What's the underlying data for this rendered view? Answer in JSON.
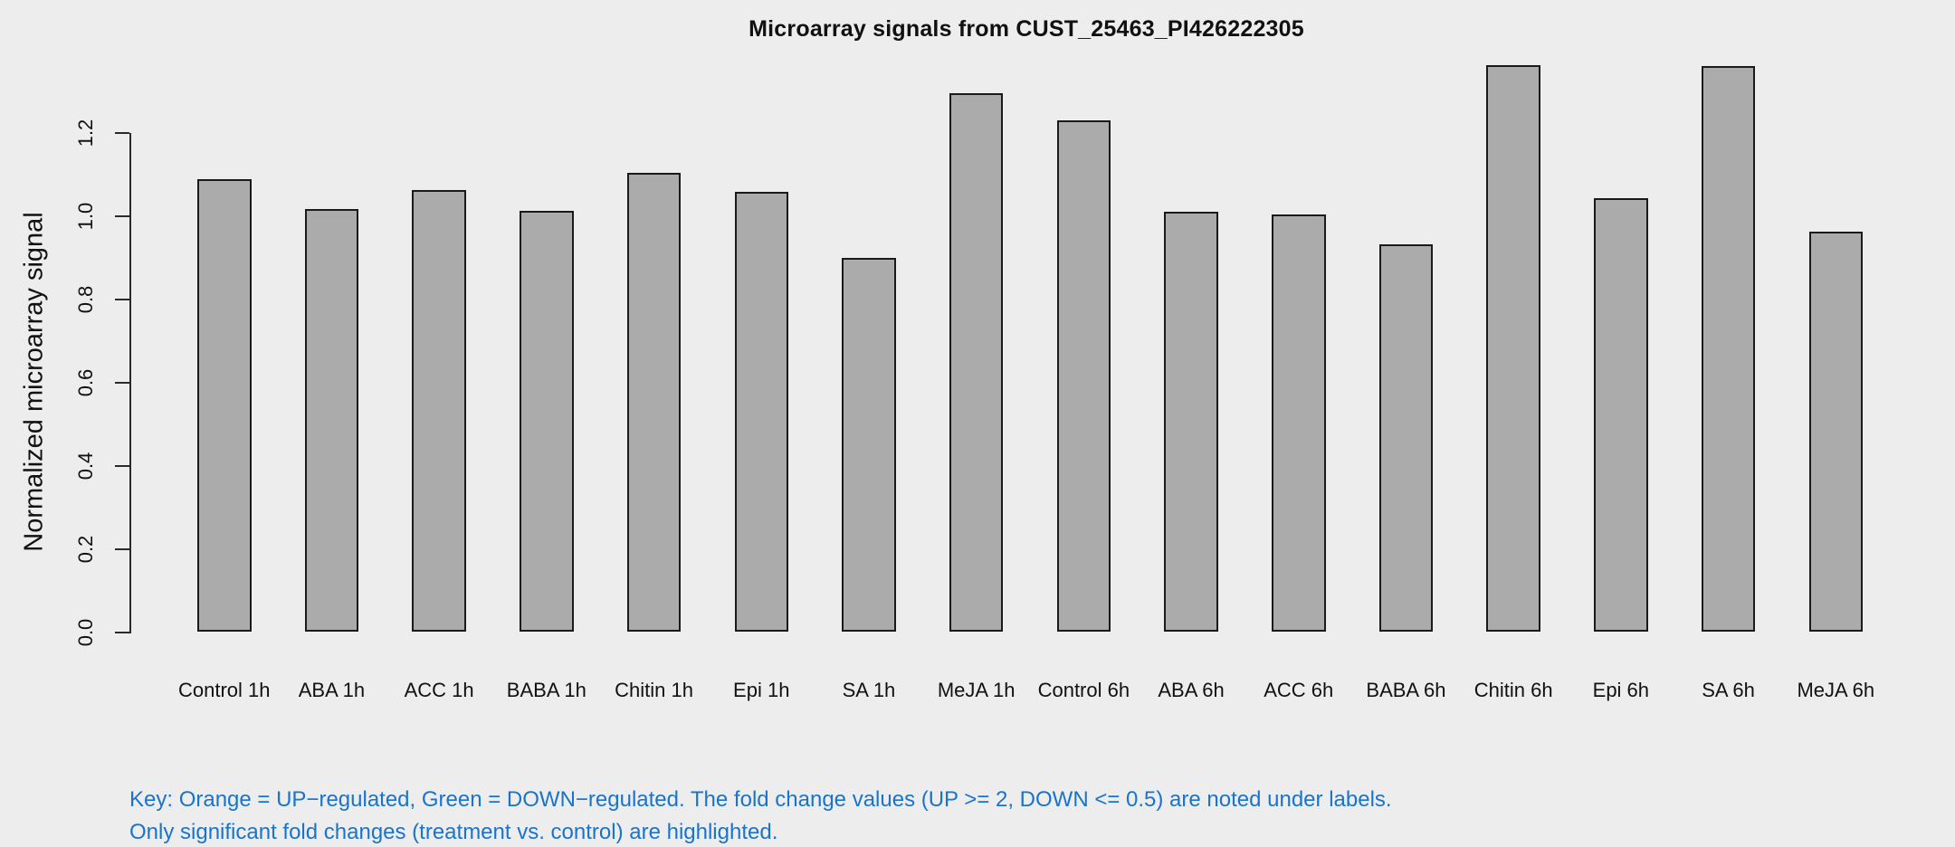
{
  "title": "Microarray signals from CUST_25463_PI426222305",
  "key": {
    "line1": "Key: Orange = UP−regulated, Green = DOWN−regulated. The fold change values (UP >= 2, DOWN <= 0.5) are noted under labels.",
    "line2": "Only significant fold changes (treatment vs. control) are highlighted.",
    "color": "#1874CD"
  },
  "chart_data": {
    "type": "bar",
    "title": "Microarray signals from CUST_25463_PI426222305",
    "xlabel": "",
    "ylabel": "Normalized microarray signal",
    "categories": [
      "Control 1h",
      "ABA 1h",
      "ACC 1h",
      "BABA 1h",
      "Chitin 1h",
      "Epi 1h",
      "SA 1h",
      "MeJA 1h",
      "Control 6h",
      "ABA 6h",
      "ACC 6h",
      "BABA 6h",
      "Chitin 6h",
      "Epi 6h",
      "SA 6h",
      "MeJA 6h"
    ],
    "values": [
      1.089,
      1.017,
      1.064,
      1.014,
      1.104,
      1.058,
      0.899,
      1.296,
      1.231,
      1.011,
      1.005,
      0.933,
      1.364,
      1.043,
      1.361,
      0.962
    ],
    "y_ticks": [
      0.0,
      0.2,
      0.4,
      0.6,
      0.8,
      1.0,
      1.2
    ],
    "y_tick_labels": [
      "0.0",
      "0.2",
      "0.4",
      "0.6",
      "0.8",
      "1.0",
      "1.2"
    ],
    "ylim": [
      0,
      1.39
    ],
    "grid": false,
    "legend": "none",
    "background_color": "#EDEDED",
    "bar_fill_color": "#ABABAB",
    "bar_border_color": "#1a1a1a",
    "axis_color": "#2a2a2a"
  }
}
